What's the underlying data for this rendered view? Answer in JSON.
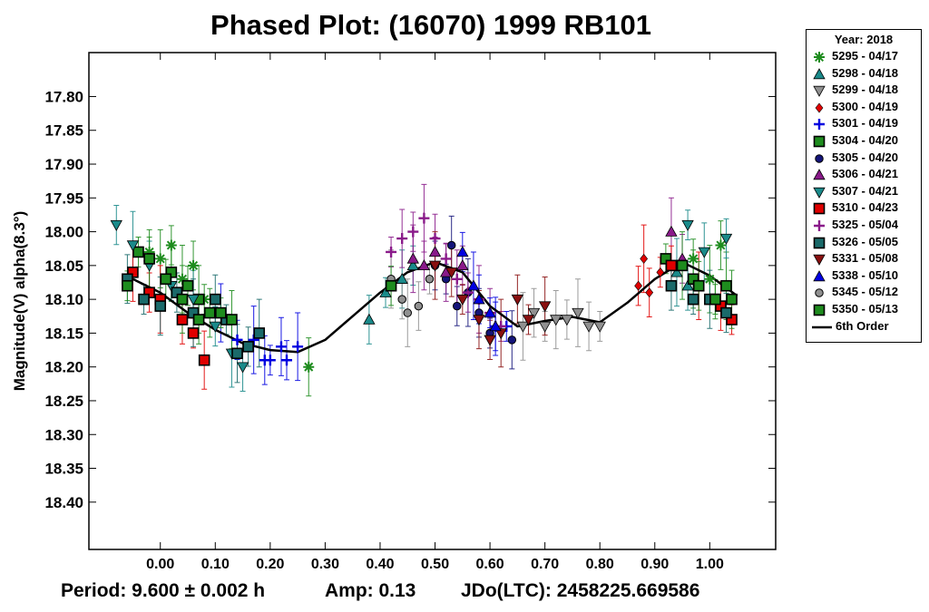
{
  "chart_data": {
    "type": "scatter",
    "title": "Phased Plot: (16070) 1999 RB101",
    "xlabel": "",
    "ylabel": "Magnitude(V) alpha(8.3°)",
    "x_ticks": [
      "0.00",
      "0.10",
      "0.20",
      "0.30",
      "0.40",
      "0.50",
      "0.60",
      "0.70",
      "0.80",
      "0.90",
      "1.00"
    ],
    "y_ticks": [
      "17.80",
      "17.85",
      "17.90",
      "17.95",
      "18.00",
      "18.05",
      "18.10",
      "18.15",
      "18.20",
      "18.25",
      "18.30",
      "18.35",
      "18.40"
    ],
    "xlim": [
      -0.13,
      1.12
    ],
    "ylim": [
      17.735,
      18.47
    ],
    "y_inverted": true,
    "legend": {
      "title": "Year: 2018",
      "placement": "right",
      "curve_label": "6th Order"
    },
    "series": [
      {
        "name": "5295 - 04/17",
        "marker": "asterisk",
        "color": "#1e8c1e",
        "points": [
          [
            -0.02,
            18.03
          ],
          [
            0.0,
            18.04
          ],
          [
            0.02,
            18.02
          ],
          [
            0.04,
            18.07
          ],
          [
            0.06,
            18.05
          ],
          [
            0.08,
            18.1
          ],
          [
            0.27,
            18.2
          ],
          [
            0.97,
            18.04
          ],
          [
            1.0,
            18.07
          ],
          [
            1.02,
            18.02
          ]
        ]
      },
      {
        "name": "5298 - 04/18",
        "marker": "triangle-up",
        "color": "#1a8a8a",
        "points": [
          [
            0.38,
            18.13
          ],
          [
            0.41,
            18.09
          ],
          [
            0.44,
            18.07
          ],
          [
            0.46,
            18.05
          ],
          [
            0.94,
            18.06
          ],
          [
            0.96,
            18.08
          ]
        ]
      },
      {
        "name": "5299 - 04/18",
        "marker": "triangle-down",
        "color": "#909090",
        "points": [
          [
            0.66,
            18.14
          ],
          [
            0.68,
            18.12
          ],
          [
            0.7,
            18.14
          ],
          [
            0.72,
            18.13
          ],
          [
            0.74,
            18.13
          ],
          [
            0.76,
            18.12
          ],
          [
            0.78,
            18.14
          ],
          [
            0.8,
            18.14
          ]
        ]
      },
      {
        "name": "5300 - 04/19",
        "marker": "diamond",
        "color": "#e00000",
        "points": [
          [
            0.87,
            18.08
          ],
          [
            0.88,
            18.04
          ],
          [
            0.89,
            18.09
          ],
          [
            0.91,
            18.06
          ]
        ]
      },
      {
        "name": "5301 - 04/19",
        "marker": "plus",
        "color": "#0000e0",
        "points": [
          [
            0.11,
            18.12
          ],
          [
            0.14,
            18.16
          ],
          [
            0.17,
            18.16
          ],
          [
            0.19,
            18.19
          ],
          [
            0.2,
            18.19
          ],
          [
            0.22,
            18.17
          ],
          [
            0.23,
            18.19
          ],
          [
            0.25,
            18.17
          ],
          [
            0.61,
            18.14
          ],
          [
            0.63,
            18.14
          ]
        ]
      },
      {
        "name": "5304 - 04/20",
        "marker": "square",
        "color": "#1e8c1e",
        "points": [
          [
            -0.04,
            18.03
          ],
          [
            0.02,
            18.06
          ],
          [
            0.05,
            18.08
          ],
          [
            0.07,
            18.1
          ],
          [
            0.09,
            18.12
          ],
          [
            0.92,
            18.04
          ],
          [
            0.97,
            18.07
          ],
          [
            1.01,
            18.1
          ],
          [
            1.03,
            18.08
          ]
        ]
      },
      {
        "name": "5305 - 04/20",
        "marker": "circle",
        "color": "#14147a",
        "points": [
          [
            0.5,
            18.05
          ],
          [
            0.52,
            18.07
          ],
          [
            0.53,
            18.02
          ],
          [
            0.54,
            18.11
          ],
          [
            0.56,
            18.09
          ],
          [
            0.58,
            18.12
          ],
          [
            0.6,
            18.15
          ],
          [
            0.64,
            18.16
          ]
        ]
      },
      {
        "name": "5306 - 04/21",
        "marker": "triangle-up",
        "color": "#8a1a8a",
        "points": [
          [
            0.46,
            18.04
          ],
          [
            0.48,
            18.05
          ],
          [
            0.5,
            18.03
          ],
          [
            0.52,
            18.06
          ],
          [
            0.55,
            18.05
          ],
          [
            0.93,
            18.0
          ],
          [
            0.95,
            18.04
          ]
        ]
      },
      {
        "name": "5307 - 04/21",
        "marker": "triangle-down",
        "color": "#1a8a8a",
        "points": [
          [
            -0.08,
            17.99
          ],
          [
            -0.05,
            18.02
          ],
          [
            -0.02,
            18.05
          ],
          [
            0.02,
            18.08
          ],
          [
            0.06,
            18.1
          ],
          [
            0.1,
            18.14
          ],
          [
            0.13,
            18.18
          ],
          [
            0.15,
            18.2
          ],
          [
            0.96,
            17.99
          ],
          [
            0.99,
            18.03
          ],
          [
            1.03,
            18.01
          ]
        ]
      },
      {
        "name": "5310 - 04/23",
        "marker": "square",
        "color": "#e00000",
        "points": [
          [
            -0.05,
            18.06
          ],
          [
            -0.02,
            18.09
          ],
          [
            0.0,
            18.1
          ],
          [
            0.04,
            18.13
          ],
          [
            0.06,
            18.15
          ],
          [
            0.08,
            18.19
          ],
          [
            0.93,
            18.05
          ],
          [
            0.98,
            18.08
          ],
          [
            1.02,
            18.11
          ],
          [
            1.04,
            18.13
          ]
        ]
      },
      {
        "name": "5325 - 05/04",
        "marker": "plus",
        "color": "#8a1a8a",
        "points": [
          [
            0.42,
            18.03
          ],
          [
            0.44,
            18.01
          ],
          [
            0.46,
            18.0
          ],
          [
            0.48,
            17.98
          ],
          [
            0.5,
            18.01
          ],
          [
            0.52,
            18.04
          ],
          [
            0.54,
            18.07
          ],
          [
            0.56,
            18.09
          ],
          [
            0.58,
            18.1
          ],
          [
            0.6,
            18.12
          ],
          [
            0.62,
            18.14
          ]
        ]
      },
      {
        "name": "5326 - 05/05",
        "marker": "square",
        "color": "#1a6a6a",
        "points": [
          [
            -0.06,
            18.07
          ],
          [
            -0.03,
            18.1
          ],
          [
            0.0,
            18.11
          ],
          [
            0.03,
            18.09
          ],
          [
            0.06,
            18.12
          ],
          [
            0.1,
            18.1
          ],
          [
            0.12,
            18.13
          ],
          [
            0.14,
            18.18
          ],
          [
            0.16,
            18.17
          ],
          [
            0.18,
            18.15
          ],
          [
            0.93,
            18.08
          ],
          [
            0.97,
            18.1
          ],
          [
            1.0,
            18.1
          ],
          [
            1.03,
            18.12
          ]
        ]
      },
      {
        "name": "5331 - 05/08",
        "marker": "triangle-down",
        "color": "#8a1010",
        "points": [
          [
            0.5,
            18.05
          ],
          [
            0.53,
            18.06
          ],
          [
            0.55,
            18.1
          ],
          [
            0.58,
            18.13
          ],
          [
            0.6,
            18.16
          ],
          [
            0.62,
            18.15
          ],
          [
            0.65,
            18.1
          ],
          [
            0.67,
            18.13
          ],
          [
            0.7,
            18.11
          ]
        ]
      },
      {
        "name": "5338 - 05/10",
        "marker": "triangle-up",
        "color": "#0000e0",
        "points": [
          [
            0.55,
            18.03
          ],
          [
            0.57,
            18.08
          ],
          [
            0.58,
            18.1
          ],
          [
            0.6,
            18.12
          ],
          [
            0.61,
            18.14
          ]
        ]
      },
      {
        "name": "5345 - 05/12",
        "marker": "circle",
        "color": "#909090",
        "points": [
          [
            0.42,
            18.07
          ],
          [
            0.44,
            18.1
          ],
          [
            0.45,
            18.12
          ],
          [
            0.47,
            18.11
          ],
          [
            0.49,
            18.07
          ]
        ]
      },
      {
        "name": "5350 - 05/13",
        "marker": "square",
        "color": "#1e8c1e",
        "points": [
          [
            -0.06,
            18.08
          ],
          [
            -0.02,
            18.04
          ],
          [
            0.01,
            18.07
          ],
          [
            0.04,
            18.1
          ],
          [
            0.07,
            18.13
          ],
          [
            0.11,
            18.12
          ],
          [
            0.13,
            18.13
          ],
          [
            0.42,
            18.08
          ],
          [
            0.95,
            18.05
          ],
          [
            0.98,
            18.08
          ],
          [
            1.01,
            18.1
          ],
          [
            1.04,
            18.1
          ]
        ]
      }
    ],
    "curve": {
      "name": "6th Order",
      "color": "#000000",
      "points": [
        [
          -0.05,
          18.07
        ],
        [
          0.0,
          18.09
        ],
        [
          0.05,
          18.12
        ],
        [
          0.1,
          18.145
        ],
        [
          0.15,
          18.165
        ],
        [
          0.2,
          18.175
        ],
        [
          0.25,
          18.178
        ],
        [
          0.3,
          18.16
        ],
        [
          0.35,
          18.125
        ],
        [
          0.4,
          18.09
        ],
        [
          0.45,
          18.06
        ],
        [
          0.5,
          18.045
        ],
        [
          0.55,
          18.06
        ],
        [
          0.6,
          18.11
        ],
        [
          0.65,
          18.14
        ],
        [
          0.7,
          18.132
        ],
        [
          0.75,
          18.126
        ],
        [
          0.8,
          18.134
        ],
        [
          0.85,
          18.105
        ],
        [
          0.9,
          18.07
        ],
        [
          0.95,
          18.045
        ],
        [
          1.0,
          18.065
        ],
        [
          1.05,
          18.095
        ]
      ]
    },
    "grid": false
  },
  "footer": {
    "period": "Period: 9.600 ± 0.002 h",
    "amp": "Amp: 0.13",
    "jdo": "JDo(LTC): 2458225.669586"
  }
}
